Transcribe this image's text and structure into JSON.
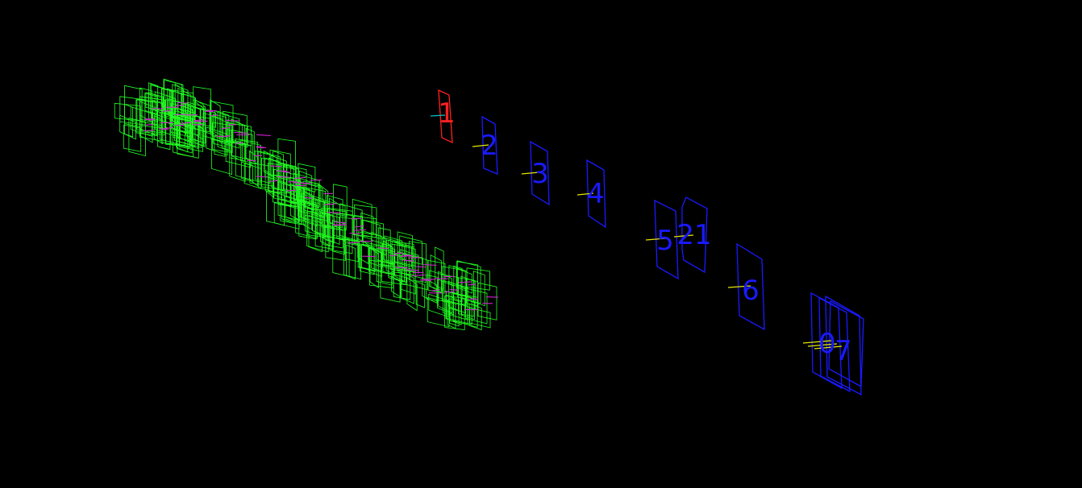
{
  "viewer": {
    "background": "#000000",
    "colors": {
      "current_frame": "#ff2020",
      "keyframe": "#1a1aff",
      "reconstructed_cameras": "#22ff22",
      "camera_axes": "#d020d0",
      "current_axis": "#00c8c8",
      "keyframe_axis": "#e6e600"
    }
  },
  "keyframes": [
    {
      "label": "1",
      "kind": "current"
    },
    {
      "label": "2",
      "kind": "keyframe"
    },
    {
      "label": "3",
      "kind": "keyframe"
    },
    {
      "label": "4",
      "kind": "keyframe"
    },
    {
      "label": "5",
      "kind": "keyframe"
    },
    {
      "label": "21",
      "kind": "keyframe"
    },
    {
      "label": "6",
      "kind": "keyframe"
    },
    {
      "label": "0",
      "kind": "keyframe"
    },
    {
      "label": "7",
      "kind": "keyframe"
    }
  ]
}
